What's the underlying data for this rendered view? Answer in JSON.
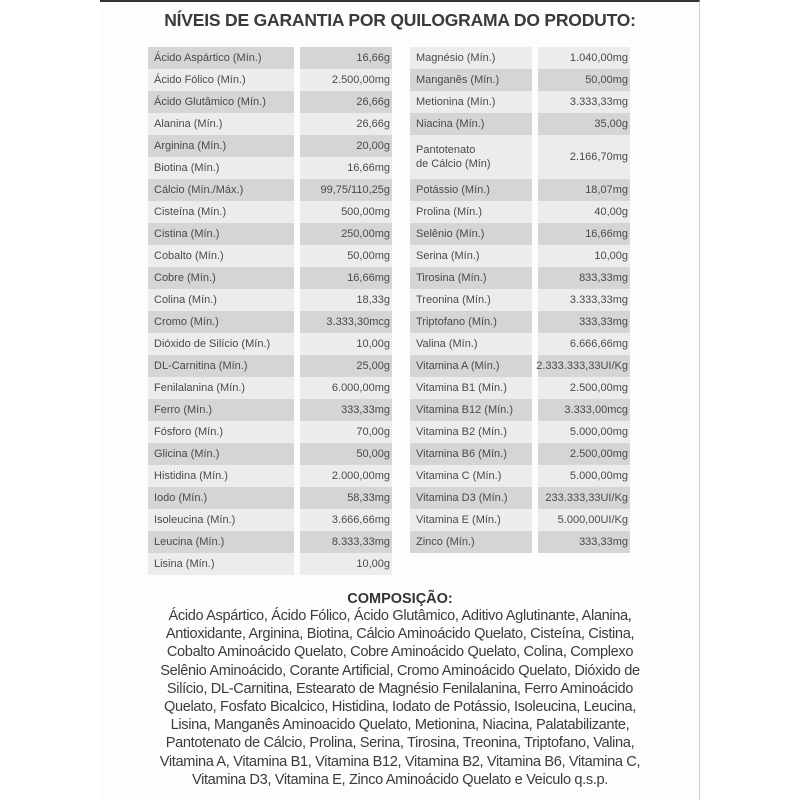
{
  "title": "NÍVEIS DE GARANTIA POR QUILOGRAMA DO PRODUTO:",
  "left_table": [
    {
      "label": "Ácido Aspártico (Mín.)",
      "value": "16,66g"
    },
    {
      "label": "Ácido Fólico (Mín.)",
      "value": "2.500,00mg"
    },
    {
      "label": "Ácido Glutâmico (Mín.)",
      "value": "26,66g"
    },
    {
      "label": "Alanina (Mín.)",
      "value": "26,66g"
    },
    {
      "label": "Arginina (Mín.)",
      "value": "20,00g"
    },
    {
      "label": "Biotina (Mín.)",
      "value": "16,66mg"
    },
    {
      "label": "Cálcio (Mín./Máx.)",
      "value": "99,75/110,25g"
    },
    {
      "label": "Cisteína (Mín.)",
      "value": "500,00mg"
    },
    {
      "label": "Cistina (Mín.)",
      "value": "250,00mg"
    },
    {
      "label": "Cobalto (Mín.)",
      "value": "50,00mg"
    },
    {
      "label": "Cobre (Mín.)",
      "value": "16,66mg"
    },
    {
      "label": "Colina (Mín.)",
      "value": "18,33g"
    },
    {
      "label": "Cromo (Mín.)",
      "value": "3.333,30mcg"
    },
    {
      "label": "Dióxido de Silício (Mín.)",
      "value": "10,00g"
    },
    {
      "label": "DL-Carnitina (Mín.)",
      "value": "25,00g"
    },
    {
      "label": "Fenilalanina (Mín.)",
      "value": "6.000,00mg"
    },
    {
      "label": "Ferro (Mín.)",
      "value": "333,33mg"
    },
    {
      "label": "Fósforo (Mín.)",
      "value": "70,00g"
    },
    {
      "label": "Glicina (Mín.)",
      "value": "50,00g"
    },
    {
      "label": "Histidina (Mín.)",
      "value": "2.000,00mg"
    },
    {
      "label": "Iodo (Mín.)",
      "value": "58,33mg"
    },
    {
      "label": "Isoleucina (Mín.)",
      "value": "3.666,66mg"
    },
    {
      "label": "Leucina (Mín.)",
      "value": "8.333,33mg"
    },
    {
      "label": "Lisina (Mín.)",
      "value": "10,00g"
    }
  ],
  "right_table": [
    {
      "label": "Magnésio (Mín.)",
      "value": "1.040,00mg"
    },
    {
      "label": "Manganês (Mín.)",
      "value": "50,00mg"
    },
    {
      "label": "Metionina (Mín.)",
      "value": "3.333,33mg"
    },
    {
      "label": "Niacina (Mín.)",
      "value": "35,00g"
    },
    {
      "label": "Pantotenato\nde Cálcio (Mín)",
      "value": "2.166,70mg"
    },
    {
      "label": "Potássio (Mín.)",
      "value": "18,07mg"
    },
    {
      "label": "Prolina (Mín.)",
      "value": "40,00g"
    },
    {
      "label": "Selênio (Mín.)",
      "value": "16,66mg"
    },
    {
      "label": "Serina (Mín.)",
      "value": "10,00g"
    },
    {
      "label": "Tirosina (Mín.)",
      "value": "833,33mg"
    },
    {
      "label": "Treonina (Mín.)",
      "value": "3.333,33mg"
    },
    {
      "label": "Triptofano (Mín.)",
      "value": "333,33mg"
    },
    {
      "label": "Valina (Mín.)",
      "value": "6.666,66mg"
    },
    {
      "label": "Vitamina A (Mín.)",
      "value": "2.333.333,33UI/Kg"
    },
    {
      "label": "Vitamina B1 (Mín.)",
      "value": "2.500,00mg"
    },
    {
      "label": "Vitamina B12 (Mín.)",
      "value": "3.333,00mcg"
    },
    {
      "label": "Vitamina B2 (Mín.)",
      "value": "5.000,00mg"
    },
    {
      "label": "Vitamina B6 (Mín.)",
      "value": "2.500,00mg"
    },
    {
      "label": "Vitamina C (Mín.)",
      "value": "5.000,00mg"
    },
    {
      "label": "Vitamina D3 (Mín.)",
      "value": "233.333,33UI/Kg"
    },
    {
      "label": "Vitamina E (Mín.)",
      "value": "5.000,00UI/Kg"
    },
    {
      "label": "Zinco (Mín.)",
      "value": "333,33mg"
    }
  ],
  "composition": {
    "title": "COMPOSIÇÃO:",
    "lines": [
      "Ácido Aspártico, Ácido Fólico, Ácido Glutâmico, Aditivo Aglutinante, Alanina,",
      "Antioxidante, Arginina, Biotina, Cálcio Aminoácido Quelato, Cisteína, Cistina,",
      "Cobalto Aminoácido Quelato, Cobre Aminoácido Quelato, Colina, Complexo",
      "Selênio Aminoácido, Corante Artificial, Cromo Aminoácido Quelato, Dióxido de",
      "Silício, DL-Carnitina, Estearato de Magnésio Fenilalanina, Ferro Aminoácido",
      "Quelato, Fosfato Bicalcico, Histidina, Iodato de Potássio, Isoleucina, Leucina,",
      "Lisina, Manganês Aminoacido Quelato, Metionina, Niacina, Palatabilizante,",
      "Pantotenato de Cálcio, Prolina, Serina, Tirosina, Treonina, Triptofano, Valina,",
      "Vitamina A, Vitamina B1, Vitamina B12, Vitamina B2, Vitamina B6, Vitamina C,",
      "Vitamina D3, Vitamina E, Zinco Aminoácido Quelato e Veiculo q.s.p."
    ]
  },
  "colors": {
    "row_dark": "#d5d5d5",
    "row_light": "#ececec",
    "text": "#4a4a4a"
  }
}
